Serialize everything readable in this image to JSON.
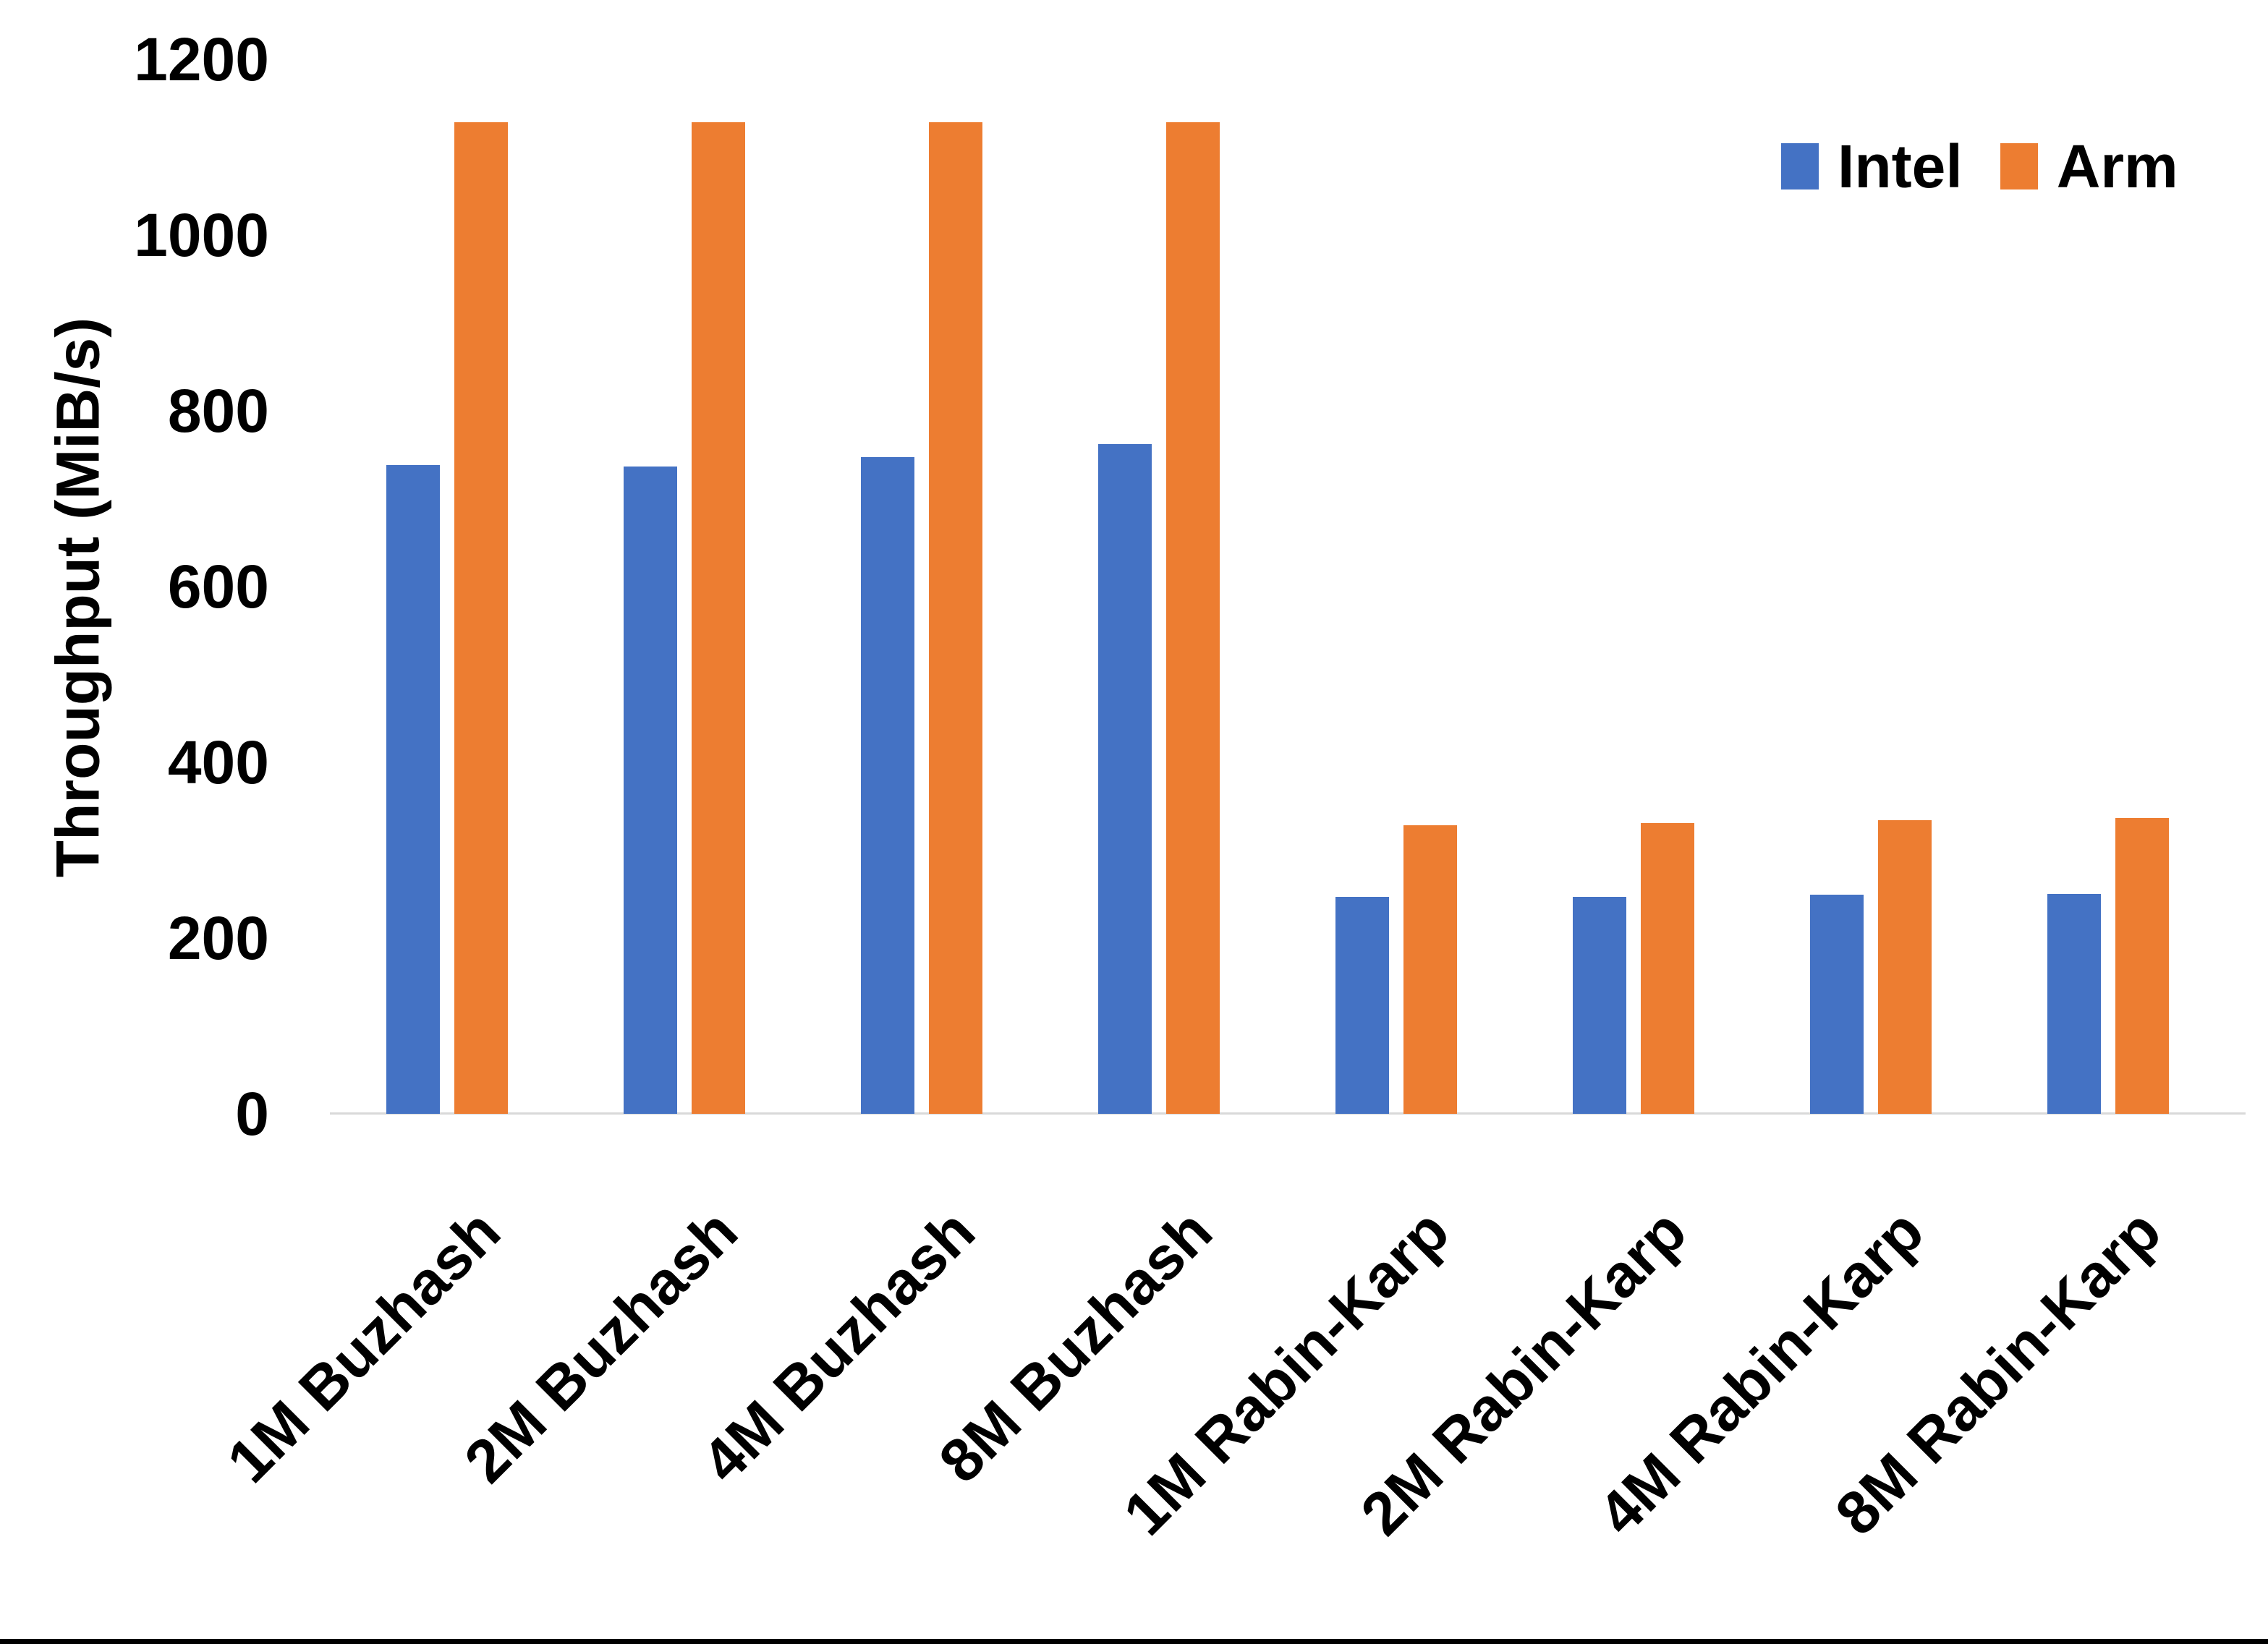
{
  "chart_data": {
    "type": "bar",
    "title": "",
    "ylabel": "Throughput (MiB/s)",
    "xlabel": "",
    "categories": [
      "1M Buzhash",
      "2M Buzhash",
      "4M Buzhash",
      "8M Buzhash",
      "1M Rabin-Karp",
      "2M Rabin-Karp",
      "4M Rabin-Karp",
      "8M Rabin-Karp"
    ],
    "series": [
      {
        "name": "Intel",
        "color": "#4472C4",
        "values": [
          738,
          737,
          747,
          762,
          247,
          247,
          249,
          250
        ]
      },
      {
        "name": "Arm",
        "color": "#ED7D31",
        "values": [
          1128,
          1128,
          1128,
          1128,
          328,
          331,
          334,
          337
        ]
      }
    ],
    "ylim": [
      0,
      1200
    ],
    "y_ticks": [
      0,
      200,
      400,
      600,
      800,
      1000,
      1200
    ],
    "grid": false,
    "legend_position": "top-right"
  },
  "colors": {
    "axis_line": "#D9D9D9",
    "text": "#000000",
    "background": "#FFFFFF",
    "bottom_bar": "#000000"
  }
}
